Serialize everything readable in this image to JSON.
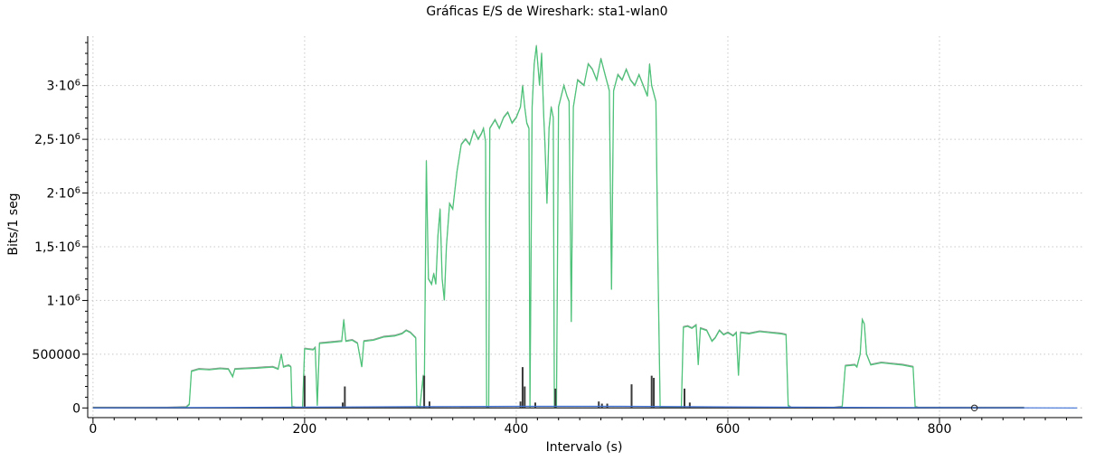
{
  "chart_data": {
    "type": "line",
    "title": "Gráficas E/S de Wireshark: sta1-wlan0",
    "xlabel": "Intervalo (s)",
    "ylabel": "Bits/1 seg",
    "xlim": [
      -5,
      935
    ],
    "ylim": [
      -90000,
      3460000
    ],
    "grid": true,
    "x_ticks": [
      {
        "value": 0,
        "label": "0"
      },
      {
        "value": 200,
        "label": "200"
      },
      {
        "value": 400,
        "label": "400"
      },
      {
        "value": 600,
        "label": "600"
      },
      {
        "value": 800,
        "label": "800"
      }
    ],
    "y_ticks": [
      {
        "value": 0,
        "label": "0",
        "exp": ""
      },
      {
        "value": 500000,
        "label": "500000",
        "exp": ""
      },
      {
        "value": 1000000,
        "label": "1·10",
        "exp": "6"
      },
      {
        "value": 1500000,
        "label": "1,5·10",
        "exp": "6"
      },
      {
        "value": 2000000,
        "label": "2·10",
        "exp": "6"
      },
      {
        "value": 2500000,
        "label": "2,5·10",
        "exp": "6"
      },
      {
        "value": 3000000,
        "label": "3·10",
        "exp": "6"
      }
    ],
    "series": [
      {
        "color": "#4fc37a",
        "points": [
          [
            0,
            0
          ],
          [
            70,
            0
          ],
          [
            88,
            5000
          ],
          [
            91,
            30000
          ],
          [
            93,
            340000
          ],
          [
            100,
            360000
          ],
          [
            110,
            355000
          ],
          [
            120,
            365000
          ],
          [
            128,
            360000
          ],
          [
            132,
            290000
          ],
          [
            134,
            360000
          ],
          [
            145,
            365000
          ],
          [
            155,
            370000
          ],
          [
            162,
            375000
          ],
          [
            170,
            380000
          ],
          [
            175,
            360000
          ],
          [
            178,
            500000
          ],
          [
            180,
            380000
          ],
          [
            185,
            395000
          ],
          [
            187,
            380000
          ],
          [
            188,
            10000
          ],
          [
            192,
            0
          ],
          [
            198,
            0
          ],
          [
            200,
            550000
          ],
          [
            208,
            540000
          ],
          [
            210,
            560000
          ],
          [
            212,
            20000
          ],
          [
            214,
            600000
          ],
          [
            225,
            610000
          ],
          [
            235,
            620000
          ],
          [
            237,
            820000
          ],
          [
            239,
            620000
          ],
          [
            245,
            630000
          ],
          [
            250,
            600000
          ],
          [
            254,
            380000
          ],
          [
            256,
            620000
          ],
          [
            265,
            630000
          ],
          [
            275,
            660000
          ],
          [
            285,
            670000
          ],
          [
            292,
            690000
          ],
          [
            296,
            720000
          ],
          [
            300,
            700000
          ],
          [
            305,
            650000
          ],
          [
            306,
            20000
          ],
          [
            309,
            0
          ],
          [
            312,
            300000
          ],
          [
            313,
            30000
          ],
          [
            315,
            2300000
          ],
          [
            317,
            1200000
          ],
          [
            320,
            1150000
          ],
          [
            322,
            1250000
          ],
          [
            324,
            1150000
          ],
          [
            326,
            1600000
          ],
          [
            328,
            1850000
          ],
          [
            330,
            1200000
          ],
          [
            332,
            1000000
          ],
          [
            334,
            1500000
          ],
          [
            337,
            1900000
          ],
          [
            340,
            1850000
          ],
          [
            344,
            2200000
          ],
          [
            348,
            2450000
          ],
          [
            352,
            2500000
          ],
          [
            356,
            2450000
          ],
          [
            360,
            2580000
          ],
          [
            364,
            2500000
          ],
          [
            367,
            2550000
          ],
          [
            369,
            2600000
          ],
          [
            371,
            2480000
          ],
          [
            372,
            0
          ],
          [
            374,
            0
          ],
          [
            375,
            2600000
          ],
          [
            380,
            2680000
          ],
          [
            384,
            2600000
          ],
          [
            388,
            2700000
          ],
          [
            392,
            2750000
          ],
          [
            396,
            2650000
          ],
          [
            400,
            2700000
          ],
          [
            404,
            2800000
          ],
          [
            406,
            3000000
          ],
          [
            408,
            2800000
          ],
          [
            410,
            2650000
          ],
          [
            412,
            2600000
          ],
          [
            413,
            0
          ],
          [
            415,
            2800000
          ],
          [
            417,
            3200000
          ],
          [
            419,
            3370000
          ],
          [
            420,
            3250000
          ],
          [
            422,
            3000000
          ],
          [
            424,
            3300000
          ],
          [
            426,
            2700000
          ],
          [
            427,
            2500000
          ],
          [
            429,
            1900000
          ],
          [
            431,
            2600000
          ],
          [
            433,
            2800000
          ],
          [
            435,
            2700000
          ],
          [
            436,
            0
          ],
          [
            438,
            0
          ],
          [
            440,
            2800000
          ],
          [
            445,
            3000000
          ],
          [
            448,
            2900000
          ],
          [
            450,
            2850000
          ],
          [
            452,
            800000
          ],
          [
            454,
            2800000
          ],
          [
            458,
            3050000
          ],
          [
            464,
            3000000
          ],
          [
            468,
            3200000
          ],
          [
            472,
            3150000
          ],
          [
            476,
            3050000
          ],
          [
            480,
            3250000
          ],
          [
            484,
            3100000
          ],
          [
            488,
            2950000
          ],
          [
            490,
            1100000
          ],
          [
            492,
            2950000
          ],
          [
            496,
            3100000
          ],
          [
            500,
            3050000
          ],
          [
            504,
            3150000
          ],
          [
            508,
            3050000
          ],
          [
            512,
            3000000
          ],
          [
            516,
            3100000
          ],
          [
            520,
            3000000
          ],
          [
            524,
            2900000
          ],
          [
            526,
            3200000
          ],
          [
            528,
            3000000
          ],
          [
            532,
            2850000
          ],
          [
            534,
            1300000
          ],
          [
            536,
            0
          ],
          [
            540,
            0
          ],
          [
            550,
            0
          ],
          [
            556,
            0
          ],
          [
            558,
            750000
          ],
          [
            562,
            760000
          ],
          [
            566,
            740000
          ],
          [
            570,
            770000
          ],
          [
            572,
            400000
          ],
          [
            574,
            740000
          ],
          [
            580,
            720000
          ],
          [
            585,
            620000
          ],
          [
            588,
            650000
          ],
          [
            592,
            720000
          ],
          [
            596,
            680000
          ],
          [
            600,
            700000
          ],
          [
            605,
            670000
          ],
          [
            608,
            700000
          ],
          [
            610,
            300000
          ],
          [
            612,
            700000
          ],
          [
            620,
            690000
          ],
          [
            630,
            710000
          ],
          [
            640,
            700000
          ],
          [
            650,
            690000
          ],
          [
            655,
            680000
          ],
          [
            657,
            20000
          ],
          [
            660,
            0
          ],
          [
            700,
            0
          ],
          [
            708,
            10000
          ],
          [
            711,
            390000
          ],
          [
            720,
            400000
          ],
          [
            722,
            380000
          ],
          [
            725,
            500000
          ],
          [
            727,
            820000
          ],
          [
            729,
            780000
          ],
          [
            731,
            500000
          ],
          [
            735,
            400000
          ],
          [
            745,
            420000
          ],
          [
            755,
            410000
          ],
          [
            765,
            400000
          ],
          [
            775,
            380000
          ],
          [
            777,
            10000
          ],
          [
            780,
            0
          ],
          [
            880,
            0
          ]
        ]
      },
      {
        "color": "#3a3a3a",
        "points": [
          [
            0,
            0
          ],
          [
            880,
            0
          ]
        ],
        "spikes": [
          [
            200,
            300000
          ],
          [
            236,
            50000
          ],
          [
            238,
            200000
          ],
          [
            313,
            300000
          ],
          [
            318,
            60000
          ],
          [
            404,
            60000
          ],
          [
            406,
            380000
          ],
          [
            408,
            200000
          ],
          [
            418,
            50000
          ],
          [
            437,
            180000
          ],
          [
            478,
            60000
          ],
          [
            481,
            40000
          ],
          [
            486,
            40000
          ],
          [
            509,
            220000
          ],
          [
            528,
            300000
          ],
          [
            530,
            280000
          ],
          [
            559,
            180000
          ],
          [
            564,
            50000
          ]
        ]
      },
      {
        "color": "#3b6fd6",
        "points": [
          [
            0,
            0
          ],
          [
            90,
            3000
          ],
          [
            200,
            8000
          ],
          [
            300,
            12000
          ],
          [
            400,
            15000
          ],
          [
            500,
            15000
          ],
          [
            600,
            10000
          ],
          [
            700,
            6000
          ],
          [
            780,
            3000
          ],
          [
            930,
            0
          ]
        ]
      }
    ],
    "marker": {
      "x": 833,
      "y": 0
    }
  }
}
